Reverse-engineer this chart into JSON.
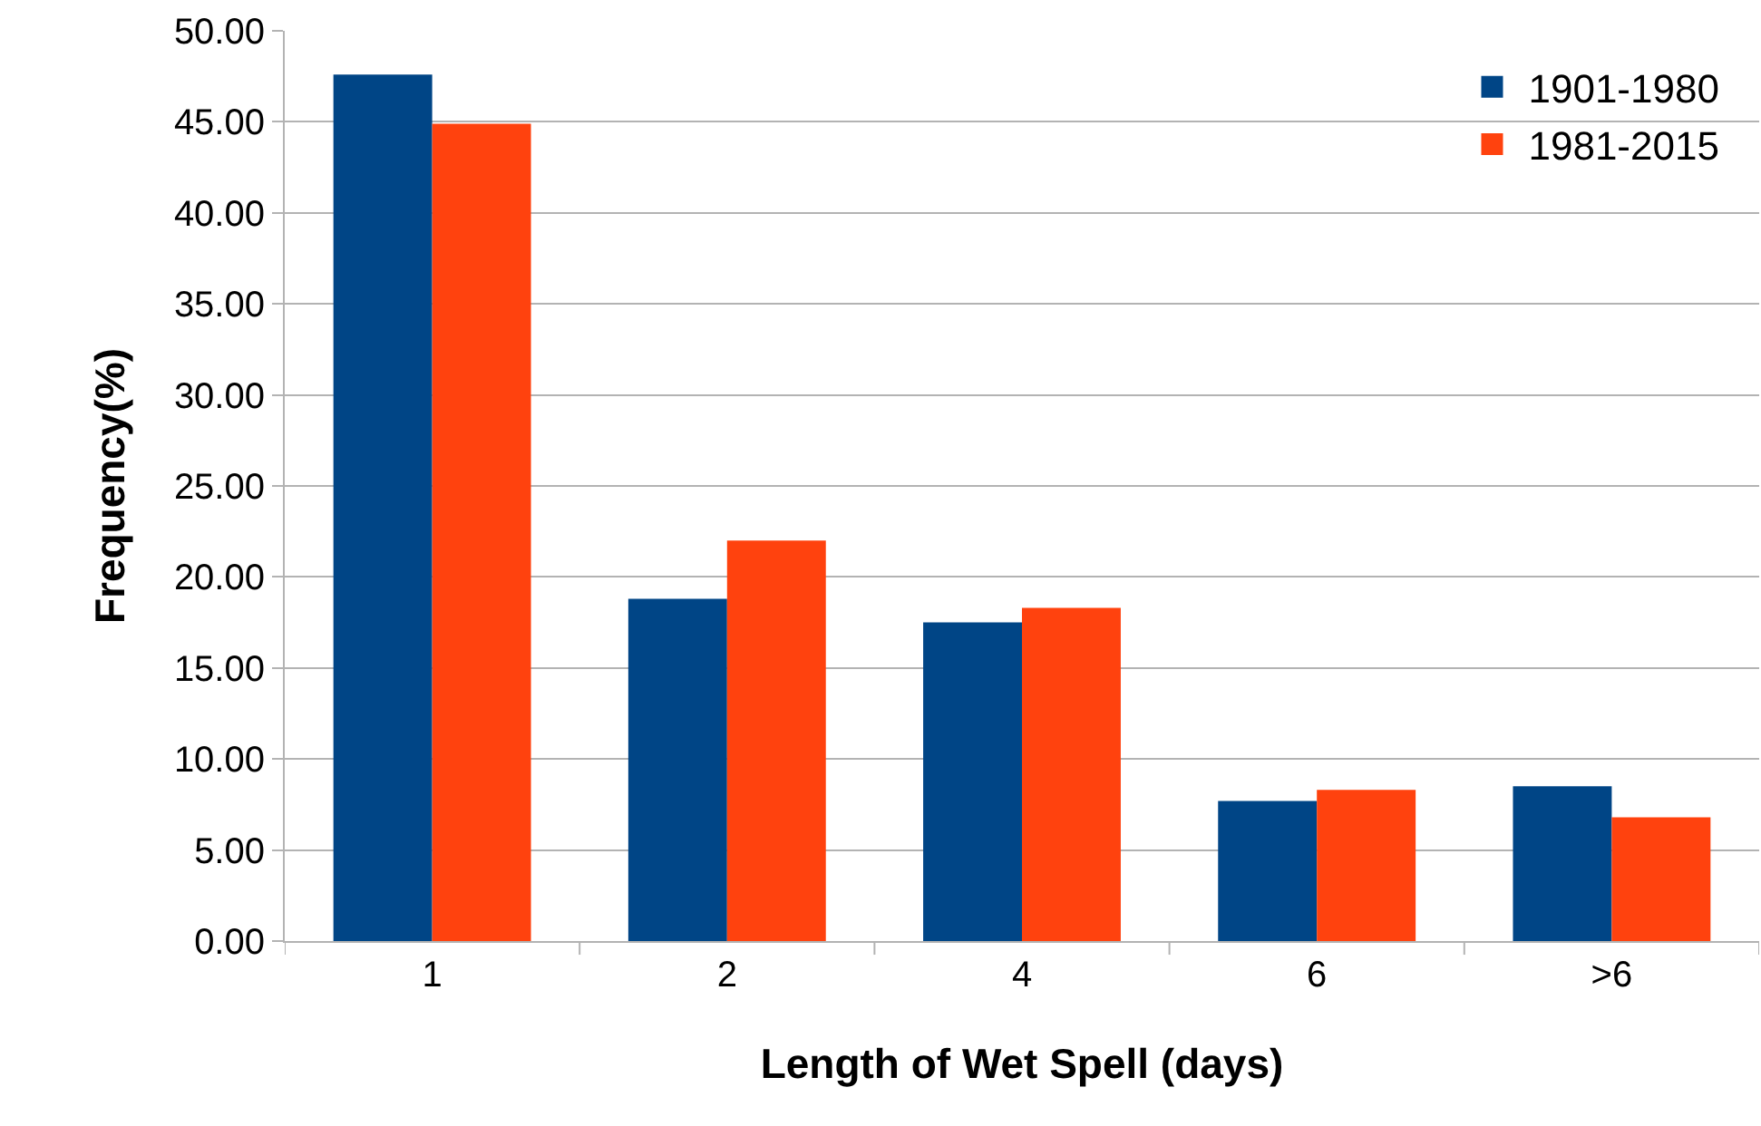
{
  "chart_data": {
    "type": "bar",
    "xlabel": "Length of Wet Spell (days)",
    "ylabel": "Frequency(%)",
    "categories": [
      "1",
      "2",
      "4",
      "6",
      ">6"
    ],
    "series": [
      {
        "name": "1901-1980",
        "color": "#004586",
        "values": [
          47.6,
          18.8,
          17.5,
          7.7,
          8.5
        ]
      },
      {
        "name": "1981-2015",
        "color": "#ff420e",
        "values": [
          44.9,
          22.0,
          18.3,
          8.3,
          6.8
        ]
      }
    ],
    "ylim": [
      0,
      50
    ],
    "yticks": [
      {
        "value": 0,
        "label": "0.00"
      },
      {
        "value": 5,
        "label": "5.00"
      },
      {
        "value": 10,
        "label": "10.00"
      },
      {
        "value": 15,
        "label": "15.00"
      },
      {
        "value": 20,
        "label": "20.00"
      },
      {
        "value": 25,
        "label": "25.00"
      },
      {
        "value": 30,
        "label": "30.00"
      },
      {
        "value": 35,
        "label": "35.00"
      },
      {
        "value": 40,
        "label": "40.00"
      },
      {
        "value": 45,
        "label": "45.00"
      },
      {
        "value": 50,
        "label": "50.00"
      }
    ],
    "grid": "y",
    "legend": "top right"
  }
}
